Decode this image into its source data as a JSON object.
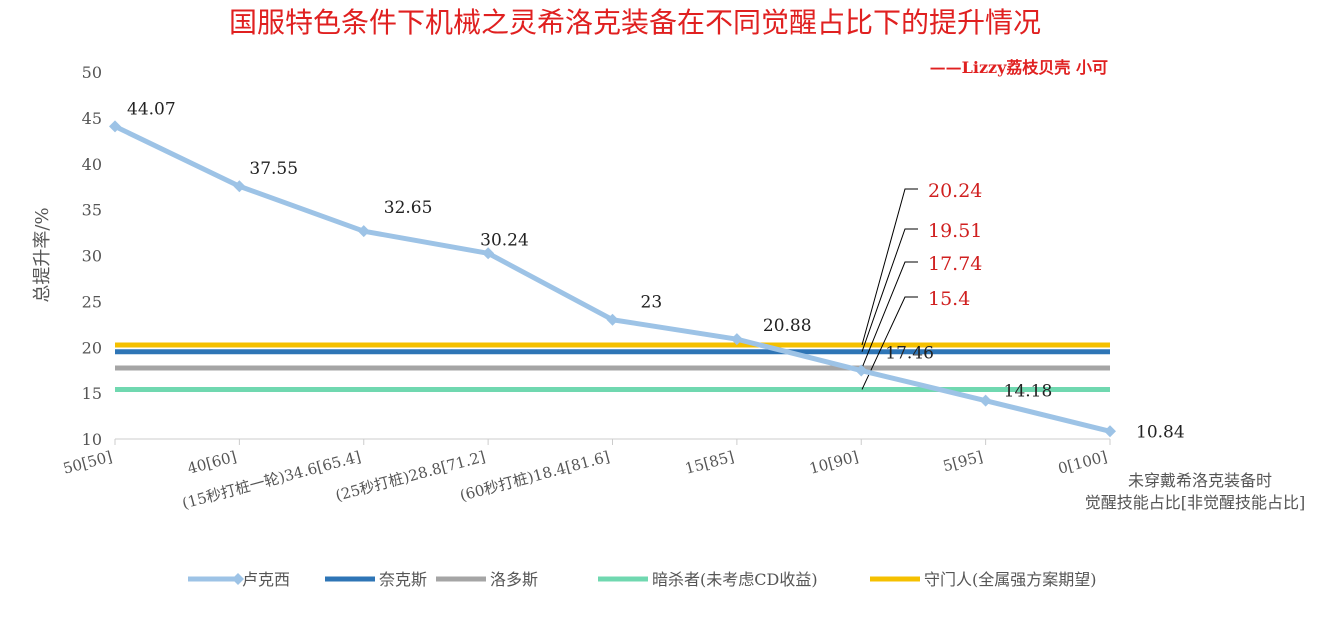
{
  "chart_data": {
    "type": "line",
    "title": "国服特色条件下机械之灵希洛克装备在不同觉醒占比下的提升情况",
    "subtitle": "——Lizzy荔枝贝壳 小可",
    "ylabel": "总提升率/%",
    "xlabel": [
      "未穿戴希洛克装备时",
      "觉醒技能占比[非觉醒技能占比]"
    ],
    "ylim": [
      10,
      50
    ],
    "yticks": [
      "10",
      "15",
      "20",
      "25",
      "30",
      "35",
      "40",
      "45",
      "50"
    ],
    "categories": [
      "50[50]",
      "40[60]",
      "(15秒打桩一轮)34.6[65.4]",
      "(25秒打桩)28.8[71.2]",
      "(60秒打桩)18.4[81.6]",
      "15[85]",
      "10[90]",
      "5[95]",
      "0[100]"
    ],
    "series": [
      {
        "name": "卢克西",
        "color": "#9dc3e6",
        "values": [
          44.07,
          37.55,
          32.65,
          30.24,
          23,
          20.88,
          17.46,
          14.18,
          10.84
        ],
        "labels": [
          "44.07",
          "37.55",
          "32.65",
          "30.24",
          "23",
          "20.88",
          "17.46",
          "14.18",
          "10.84"
        ]
      },
      {
        "name": "奈克斯",
        "color": "#2e75b6",
        "constant": 19.51,
        "label": "19.51"
      },
      {
        "name": "洛多斯",
        "color": "#a5a5a5",
        "constant": 17.74,
        "label": "17.74"
      },
      {
        "name": "暗杀者(未考虑CD收益)",
        "color": "#70d8b0",
        "constant": 15.4,
        "label": "15.4"
      },
      {
        "name": "守门人(全属强方案期望)",
        "color": "#f5c000",
        "constant": 20.24,
        "label": "20.24"
      }
    ],
    "legend": "bottom",
    "grid": false
  }
}
